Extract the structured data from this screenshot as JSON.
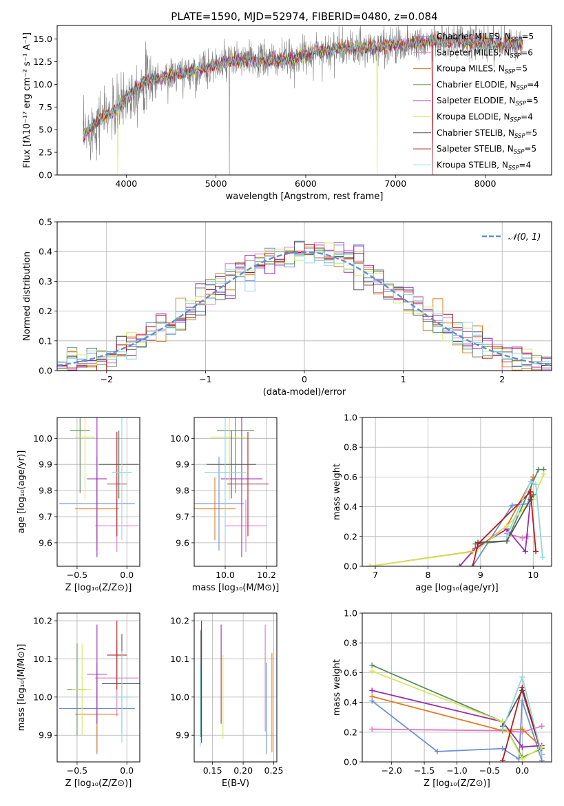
{
  "colors": {
    "Chabrier MILES": "#6a8fd8",
    "Salpeter MILES": "#e377c2",
    "Kroupa MILES": "#e07b1f",
    "Chabrier ELODIE": "#5c8a5c",
    "Salpeter ELODIE": "#9b2bb0",
    "Kroupa ELODIE": "#d4e85a",
    "Chabrier STELIB": "#555555",
    "Salpeter STELIB": "#b01c1c",
    "Kroupa STELIB": "#8fd6e0",
    "normal_line": "#5b8fd6",
    "spectrum_gray": "#7f7f7f"
  },
  "chart_data": [
    {
      "id": "spectrum",
      "type": "line",
      "title": "PLATE=1590, MJD=52974, FIBERID=0480, z=0.084",
      "xlabel": "wavelength [Angstrom, rest frame]",
      "ylabel": "Flux [fλ10⁻¹⁷ erg cm⁻² s⁻¹ A⁻¹]",
      "xlim": [
        3230,
        8740
      ],
      "ylim": [
        0,
        16.5
      ],
      "xticks": [
        "4000",
        "5000",
        "6000",
        "7000",
        "8000"
      ],
      "yticks": [
        "0.0",
        "2.5",
        "5.0",
        "7.5",
        "10.0",
        "12.5",
        "15.0"
      ],
      "xtick_values": [
        4000,
        5000,
        6000,
        7000,
        8000
      ],
      "ytick_values": [
        0,
        2.5,
        5,
        7.5,
        10,
        12.5,
        15
      ],
      "legend_loc": "upper right",
      "legend": [
        {
          "name": "Chabrier MILES",
          "nssp": "5"
        },
        {
          "name": "Salpeter MILES",
          "nssp": "6"
        },
        {
          "name": "Kroupa MILES",
          "nssp": "5"
        },
        {
          "name": "Chabrier ELODIE",
          "nssp": "4"
        },
        {
          "name": "Salpeter ELODIE",
          "nssp": "5"
        },
        {
          "name": "Kroupa ELODIE",
          "nssp": "4"
        },
        {
          "name": "Chabrier STELIB",
          "nssp": "5"
        },
        {
          "name": "Salpeter STELIB",
          "nssp": "5"
        },
        {
          "name": "Kroupa STELIB",
          "nssp": "4"
        }
      ],
      "continuum": [
        [
          3520,
          4.2
        ],
        [
          3700,
          6.2
        ],
        [
          3900,
          7.2
        ],
        [
          4000,
          8.6
        ],
        [
          4200,
          10.3
        ],
        [
          4500,
          11.0
        ],
        [
          4800,
          11.6
        ],
        [
          5200,
          12.6
        ],
        [
          5800,
          12.7
        ],
        [
          6200,
          13.8
        ],
        [
          6800,
          14.1
        ],
        [
          7400,
          14.8
        ],
        [
          8000,
          14.6
        ],
        [
          8400,
          14.3
        ]
      ],
      "spikes": [
        [
          5150,
          0.0
        ],
        [
          6790,
          0.0
        ],
        [
          7410,
          0.0
        ],
        [
          3900,
          0.0
        ],
        [
          3520,
          0.0
        ]
      ]
    },
    {
      "id": "residuals",
      "type": "bar",
      "xlabel": "(data-model)/error",
      "ylabel": "Normed distribution",
      "xlim": [
        -2.5,
        2.5
      ],
      "ylim": [
        0,
        0.5
      ],
      "xticks": [
        "−2",
        "−1",
        "0",
        "1",
        "2"
      ],
      "xtick_values": [
        -2,
        -1,
        0,
        1,
        2
      ],
      "yticks": [
        "0.0",
        "0.1",
        "0.2",
        "0.3",
        "0.4",
        "0.5"
      ],
      "ytick_values": [
        0,
        0.1,
        0.2,
        0.3,
        0.4,
        0.5
      ],
      "bin_width": 0.1,
      "legend": [
        {
          "name": "𝒩(0, 1)"
        }
      ],
      "legend_loc": "upper right",
      "grid": true
    },
    {
      "id": "age_vs_Z",
      "type": "scatter",
      "xlabel": "Z [log₁₀(Z/Z⊙)]",
      "ylabel": "age  [log₁₀(age/yr)]",
      "xlim": [
        -0.7,
        0.13
      ],
      "ylim": [
        9.51,
        10.08
      ],
      "xticks": [
        "−0.5",
        "0.0"
      ],
      "xtick_values": [
        -0.5,
        0.0
      ],
      "yticks": [
        "9.6",
        "9.7",
        "9.8",
        "9.9",
        "10.0"
      ],
      "ytick_values": [
        9.6,
        9.7,
        9.8,
        9.9,
        10.0
      ],
      "grid": true,
      "points": [
        {
          "series": "Chabrier MILES",
          "x": -0.3,
          "y": 9.75,
          "xerr": 0.38,
          "yerr": 0.18
        },
        {
          "series": "Salpeter MILES",
          "x": -0.1,
          "y": 9.665,
          "xerr": 0.22,
          "yerr": 0.1
        },
        {
          "series": "Kroupa MILES",
          "x": -0.3,
          "y": 9.73,
          "xerr": 0.22,
          "yerr": 0.12
        },
        {
          "series": "Chabrier ELODIE",
          "x": -0.47,
          "y": 10.03,
          "xerr": 0.1,
          "yerr": 0.24
        },
        {
          "series": "Salpeter ELODIE",
          "x": -0.3,
          "y": 9.845,
          "xerr": 0.1,
          "yerr": 0.3
        },
        {
          "series": "Kroupa ELODIE",
          "x": -0.42,
          "y": 10.005,
          "xerr": 0.1,
          "yerr": 0.24
        },
        {
          "series": "Chabrier STELIB",
          "x": -0.08,
          "y": 9.9,
          "xerr": 0.2,
          "yerr": 0.13
        },
        {
          "series": "Salpeter STELIB",
          "x": -0.1,
          "y": 9.825,
          "xerr": 0.1,
          "yerr": 0.2
        },
        {
          "series": "Kroupa STELIB",
          "x": -0.05,
          "y": 9.87,
          "xerr": 0.1,
          "yerr": 0.26
        }
      ]
    },
    {
      "id": "age_vs_mass",
      "type": "scatter",
      "xlabel": "mass [log₁₀(M/M⊙)]",
      "xlim": [
        9.85,
        10.25
      ],
      "ylim": [
        9.51,
        10.08
      ],
      "xticks": [
        "10.0",
        "10.2"
      ],
      "xtick_values": [
        10.0,
        10.2
      ],
      "yticks": [
        "9.6",
        "9.7",
        "9.8",
        "9.9",
        "10.0"
      ],
      "ytick_values": [
        9.6,
        9.7,
        9.8,
        9.9,
        10.0
      ],
      "grid": true,
      "points": [
        {
          "series": "Chabrier MILES",
          "x": 9.97,
          "y": 9.75,
          "xerr": 0.12,
          "yerr": 0.18
        },
        {
          "series": "Salpeter MILES",
          "x": 10.1,
          "y": 9.665,
          "xerr": 0.1,
          "yerr": 0.1
        },
        {
          "series": "Kroupa MILES",
          "x": 9.95,
          "y": 9.73,
          "xerr": 0.1,
          "yerr": 0.12
        },
        {
          "series": "Chabrier ELODIE",
          "x": 10.05,
          "y": 10.03,
          "xerr": 0.09,
          "yerr": 0.24
        },
        {
          "series": "Salpeter ELODIE",
          "x": 10.08,
          "y": 9.845,
          "xerr": 0.1,
          "yerr": 0.3
        },
        {
          "series": "Kroupa ELODIE",
          "x": 10.02,
          "y": 10.005,
          "xerr": 0.09,
          "yerr": 0.24
        },
        {
          "series": "Chabrier STELIB",
          "x": 10.03,
          "y": 9.9,
          "xerr": 0.12,
          "yerr": 0.13
        },
        {
          "series": "Salpeter STELIB",
          "x": 10.11,
          "y": 9.825,
          "xerr": 0.1,
          "yerr": 0.2
        },
        {
          "series": "Kroupa STELIB",
          "x": 10.0,
          "y": 9.87,
          "xerr": 0.1,
          "yerr": 0.26
        }
      ]
    },
    {
      "id": "weight_vs_age",
      "type": "line",
      "xlabel": "age  [log₁₀(age/yr)]",
      "ylabel": "mass weight",
      "xlim": [
        6.75,
        10.35
      ],
      "ylim": [
        0,
        1.0
      ],
      "xticks": [
        "7",
        "8",
        "9",
        "10"
      ],
      "xtick_values": [
        7,
        8,
        9,
        10
      ],
      "yticks": [
        "0.0",
        "0.2",
        "0.4",
        "0.6",
        "0.8",
        "1.0"
      ],
      "ytick_values": [
        0,
        0.2,
        0.4,
        0.6,
        0.8,
        1.0
      ],
      "grid": true,
      "series": [
        {
          "name": "Chabrier MILES",
          "x": [
            8.85,
            9.6,
            9.9,
            10.0
          ],
          "y": [
            0.0,
            0.41,
            0.42,
            0.6
          ]
        },
        {
          "name": "Salpeter MILES",
          "x": [
            9.5,
            9.8,
            9.9
          ],
          "y": [
            0.22,
            0.19,
            0.2
          ]
        },
        {
          "name": "Kroupa MILES",
          "x": [
            6.9,
            8.85,
            9.5,
            10.0
          ],
          "y": [
            0.0,
            0.1,
            0.27,
            0.6
          ]
        },
        {
          "name": "Chabrier ELODIE",
          "x": [
            8.9,
            9.5,
            10.1,
            10.2
          ],
          "y": [
            0.15,
            0.17,
            0.65,
            0.65
          ]
        },
        {
          "name": "Salpeter ELODIE",
          "x": [
            8.6,
            8.9,
            9.5,
            9.85,
            9.95
          ],
          "y": [
            0.0,
            0.12,
            0.25,
            0.1,
            0.45
          ]
        },
        {
          "name": "Kroupa ELODIE",
          "x": [
            6.9,
            8.9,
            9.5,
            10.0,
            10.2
          ],
          "y": [
            0.0,
            0.1,
            0.27,
            0.45,
            0.62
          ]
        },
        {
          "name": "Chabrier STELIB",
          "x": [
            8.95,
            9.5,
            9.95,
            10.0
          ],
          "y": [
            0.16,
            0.17,
            0.45,
            0.48
          ]
        },
        {
          "name": "Salpeter STELIB",
          "x": [
            8.85,
            8.95,
            9.95,
            10.05
          ],
          "y": [
            0.0,
            0.15,
            0.5,
            0.1
          ]
        },
        {
          "name": "Kroupa STELIB",
          "x": [
            9.5,
            9.95,
            10.05,
            10.18
          ],
          "y": [
            0.2,
            0.57,
            0.55,
            0.06
          ]
        }
      ]
    },
    {
      "id": "mass_vs_Z",
      "type": "scatter",
      "xlabel": "Z [log₁₀(Z/Z⊙)]",
      "ylabel": "mass [log₁₀(M/M⊙)]",
      "xlim": [
        -0.7,
        0.13
      ],
      "ylim": [
        9.83,
        10.22
      ],
      "xticks": [
        "−0.5",
        "0.0"
      ],
      "xtick_values": [
        -0.5,
        0.0
      ],
      "yticks": [
        "9.9",
        "10.0",
        "10.1",
        "10.2"
      ],
      "ytick_values": [
        9.9,
        10.0,
        10.1,
        10.2
      ],
      "grid": true,
      "points": [
        {
          "series": "Chabrier MILES",
          "x": -0.3,
          "y": 9.97,
          "xerr": 0.38,
          "yerr": 0.12
        },
        {
          "series": "Salpeter MILES",
          "x": -0.1,
          "y": 10.05,
          "xerr": 0.22,
          "yerr": 0.1
        },
        {
          "series": "Kroupa MILES",
          "x": -0.3,
          "y": 9.955,
          "xerr": 0.22,
          "yerr": 0.1
        },
        {
          "series": "Chabrier ELODIE",
          "x": -0.5,
          "y": 10.02,
          "xerr": 0.1,
          "yerr": 0.12
        },
        {
          "series": "Salpeter ELODIE",
          "x": -0.3,
          "y": 10.06,
          "xerr": 0.1,
          "yerr": 0.13
        },
        {
          "series": "Kroupa ELODIE",
          "x": -0.45,
          "y": 10.02,
          "xerr": 0.1,
          "yerr": 0.12
        },
        {
          "series": "Chabrier STELIB",
          "x": -0.05,
          "y": 10.035,
          "xerr": 0.2,
          "yerr": 0.13
        },
        {
          "series": "Salpeter STELIB",
          "x": -0.1,
          "y": 10.11,
          "xerr": 0.1,
          "yerr": 0.09
        },
        {
          "series": "Kroupa STELIB",
          "x": -0.05,
          "y": 10.0,
          "xerr": 0.1,
          "yerr": 0.12
        }
      ]
    },
    {
      "id": "mass_vs_ebv",
      "type": "scatter",
      "xlabel": "E(B-V)",
      "xlim": [
        0.12,
        0.255
      ],
      "ylim": [
        9.83,
        10.22
      ],
      "xticks": [
        "0.15",
        "0.20",
        "0.25"
      ],
      "xtick_values": [
        0.15,
        0.2,
        0.25
      ],
      "yticks": [
        "9.9",
        "10.0",
        "10.1",
        "10.2"
      ],
      "ytick_values": [
        9.9,
        10.0,
        10.1,
        10.2
      ],
      "grid": true,
      "points": [
        {
          "series": "Chabrier MILES",
          "x": 0.238,
          "y": 9.97,
          "xerr": 0,
          "yerr": 0.12
        },
        {
          "series": "Salpeter MILES",
          "x": 0.236,
          "y": 10.05,
          "xerr": 0,
          "yerr": 0.14
        },
        {
          "series": "Kroupa MILES",
          "x": 0.247,
          "y": 9.985,
          "xerr": 0,
          "yerr": 0.13
        },
        {
          "series": "Chabrier ELODIE",
          "x": 0.131,
          "y": 10.01,
          "xerr": 0,
          "yerr": 0.07
        },
        {
          "series": "Salpeter ELODIE",
          "x": 0.164,
          "y": 10.06,
          "xerr": 0,
          "yerr": 0.13
        },
        {
          "series": "Kroupa ELODIE",
          "x": 0.167,
          "y": 10.0,
          "xerr": 0,
          "yerr": 0.11
        },
        {
          "series": "Chabrier STELIB",
          "x": 0.131,
          "y": 10.035,
          "xerr": 0,
          "yerr": 0.14
        },
        {
          "series": "Salpeter STELIB",
          "x": 0.132,
          "y": 10.04,
          "xerr": 0,
          "yerr": 0.16
        },
        {
          "series": "Kroupa STELIB",
          "x": 0.13,
          "y": 9.98,
          "xerr": 0,
          "yerr": 0.11
        }
      ]
    },
    {
      "id": "weight_vs_Z",
      "type": "line",
      "xlabel": "Z [log₁₀(Z/Z⊙)]",
      "ylabel": "mass weight",
      "xlim": [
        -2.45,
        0.45
      ],
      "ylim": [
        0,
        1.0
      ],
      "xticks": [
        "−2.0",
        "−1.5",
        "−1.0",
        "−0.5",
        "0.0"
      ],
      "xtick_values": [
        -2.0,
        -1.5,
        -1.0,
        -0.5,
        0.0
      ],
      "yticks": [
        "0.0",
        "0.2",
        "0.4",
        "0.6",
        "0.8",
        "1.0"
      ],
      "ytick_values": [
        0,
        0.2,
        0.4,
        0.6,
        0.8,
        1.0
      ],
      "grid": true,
      "series": [
        {
          "name": "Chabrier MILES",
          "x": [
            -2.3,
            -1.3,
            -0.3,
            -0.05,
            0.0,
            0.3
          ],
          "y": [
            0.41,
            0.07,
            0.09,
            0.02,
            0.41,
            0.01
          ]
        },
        {
          "name": "Salpeter MILES",
          "x": [
            -2.3,
            -0.3,
            0.0,
            0.3
          ],
          "y": [
            0.22,
            0.21,
            0.2,
            0.24
          ]
        },
        {
          "name": "Kroupa MILES",
          "x": [
            -2.3,
            -0.3,
            0.0,
            0.3
          ],
          "y": [
            0.44,
            0.21,
            0.22,
            0.1
          ]
        },
        {
          "name": "Chabrier ELODIE",
          "x": [
            -2.3,
            -0.3,
            0.0,
            0.3
          ],
          "y": [
            0.65,
            0.27,
            0.03,
            0.09
          ]
        },
        {
          "name": "Salpeter ELODIE",
          "x": [
            -2.3,
            -0.3,
            0.0,
            0.3
          ],
          "y": [
            0.48,
            0.27,
            0.1,
            0.11
          ]
        },
        {
          "name": "Kroupa ELODIE",
          "x": [
            -2.3,
            -0.3,
            0.0,
            0.3
          ],
          "y": [
            0.61,
            0.27,
            0.02,
            0.1
          ]
        },
        {
          "name": "Chabrier STELIB",
          "x": [
            -0.3,
            0.0,
            0.3
          ],
          "y": [
            0.24,
            0.48,
            0.05
          ]
        },
        {
          "name": "Salpeter STELIB",
          "x": [
            -0.3,
            0.0,
            0.3
          ],
          "y": [
            0.01,
            0.5,
            0.05
          ]
        },
        {
          "name": "Kroupa STELIB",
          "x": [
            -0.3,
            0.0,
            0.3
          ],
          "y": [
            0.22,
            0.57,
            0.05
          ]
        }
      ]
    }
  ]
}
